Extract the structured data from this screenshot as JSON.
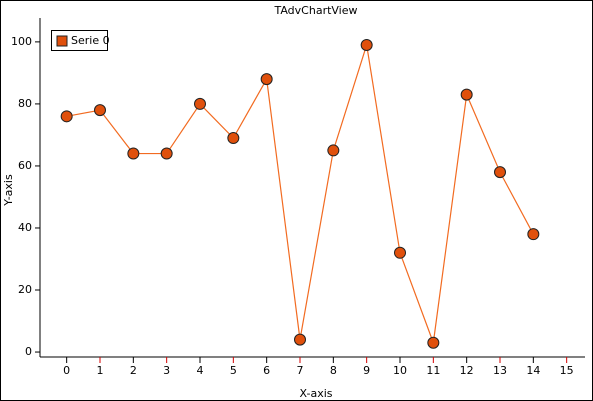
{
  "chart_data": {
    "type": "line",
    "title": "TAdvChartView",
    "x_label": "X-axis",
    "y_label": "Y-axis",
    "x": [
      0,
      1,
      2,
      3,
      4,
      5,
      6,
      7,
      8,
      9,
      10,
      11,
      12,
      13,
      14
    ],
    "series": [
      {
        "name": "Serie 0",
        "color": "#f26b21",
        "marker_color": "#e0500c",
        "values": [
          76,
          78,
          64,
          64,
          80,
          69,
          88,
          4,
          65,
          99,
          32,
          3,
          83,
          58,
          38
        ]
      }
    ],
    "xlim": [
      -0.8,
      15.55
    ],
    "ylim": [
      -1.6,
      107.7
    ],
    "xticks": [
      0,
      1,
      2,
      3,
      4,
      5,
      6,
      7,
      8,
      9,
      10,
      11,
      12,
      13,
      14,
      15
    ],
    "yticks": [
      0,
      20,
      40,
      60,
      80,
      100
    ],
    "odd_xtick_color": "#d40000",
    "legend": "upper left"
  }
}
